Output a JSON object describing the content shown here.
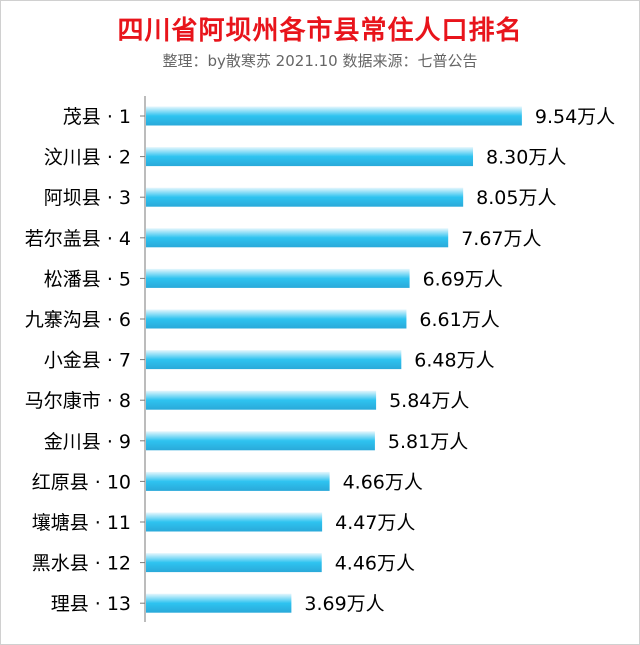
{
  "chart_data": {
    "type": "bar",
    "orientation": "horizontal",
    "title": "四川省阿坝州各市县常住人口排名",
    "subtitle": "整理：by散寒苏  2021.10  数据来源：七普公告",
    "categories": [
      "茂县 · 1",
      "汶川县 · 2",
      "阿坝县 · 3",
      "若尔盖县 · 4",
      "松潘县 · 5",
      "九寨沟县 · 6",
      "小金县 · 7",
      "马尔康市 · 8",
      "金川县 · 9",
      "红原县 · 10",
      "壤塘县 · 11",
      "黑水县 · 12",
      "理县 · 13"
    ],
    "values": [
      9.54,
      8.3,
      8.05,
      7.67,
      6.69,
      6.61,
      6.48,
      5.84,
      5.81,
      4.66,
      4.47,
      4.46,
      3.69
    ],
    "value_labels": [
      "9.54万人",
      "8.30万人",
      "8.05万人",
      "7.67万人",
      "6.69万人",
      "6.61万人",
      "6.48万人",
      "5.84万人",
      "5.81万人",
      "4.66万人",
      "4.47万人",
      "4.46万人",
      "3.69万人"
    ],
    "xlim": [
      0,
      10
    ],
    "grid": false,
    "legend": "none",
    "colors": {
      "bar_light": "#e6f7fd",
      "bar_mid": "#2ec3f0",
      "bar_dark": "#2aa9d9",
      "title": "#e8141b",
      "subtitle": "#666666",
      "axis": "#7a7a7a",
      "text": "#000000"
    }
  }
}
